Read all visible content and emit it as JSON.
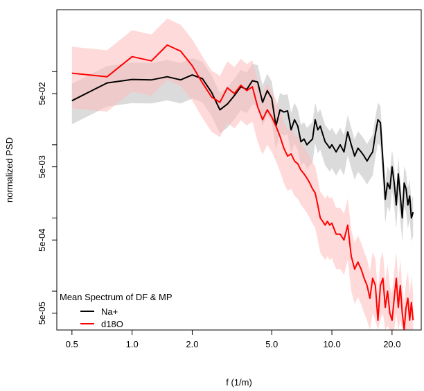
{
  "chart_data": {
    "type": "line",
    "title": "",
    "xlabel": "f (1/m)",
    "ylabel": "normalized PSD",
    "x_scale": "log",
    "y_scale": "log",
    "xlim": [
      0.42,
      28
    ],
    "ylim": [
      2.95e-05,
      0.7
    ],
    "x_ticks": [
      0.5,
      1.0,
      2.0,
      5.0,
      10.0,
      20.0
    ],
    "x_tick_labels": [
      "0.5",
      "1.0",
      "2.0",
      "5.0",
      "10.0",
      "20.0"
    ],
    "y_ticks": [
      5e-05,
      0.0005,
      0.005,
      0.05
    ],
    "y_tick_labels": [
      "5e-05",
      "5e-04",
      "5e-03",
      "5e-02"
    ],
    "grid": false,
    "legend": {
      "title": "Mean Spectrum of DF & MP",
      "position": "bottom-left",
      "entries": [
        {
          "label": "Na+",
          "color": "#000000"
        },
        {
          "label": "d18O",
          "color": "#ff0000"
        }
      ]
    },
    "series": [
      {
        "name": "Na+",
        "color": "#000000",
        "band_color": "#bebebe",
        "x": [
          0.5,
          0.75,
          1.0,
          1.25,
          1.5,
          1.75,
          2.0,
          2.25,
          2.5,
          2.75,
          3.0,
          3.25,
          3.5,
          3.75,
          4.0,
          4.25,
          4.5,
          4.75,
          5.0,
          5.25,
          5.5,
          5.75,
          6.0,
          6.25,
          6.5,
          6.75,
          7.0,
          7.25,
          7.5,
          7.75,
          8.0,
          8.25,
          8.5,
          8.75,
          9.0,
          9.25,
          9.5,
          9.75,
          10.0,
          10.5,
          11.0,
          11.5,
          12.0,
          12.5,
          13.0,
          13.5,
          14.0,
          14.5,
          15.0,
          15.5,
          16.0,
          16.5,
          17.0,
          17.5,
          18.0,
          18.5,
          19.0,
          19.5,
          20.0,
          20.5,
          21.0,
          21.5,
          22.0,
          22.5,
          23.0,
          23.5,
          24.0,
          24.5,
          25.0,
          25.5
        ],
        "values": [
          0.04,
          0.07,
          0.078,
          0.077,
          0.085,
          0.077,
          0.09,
          0.08,
          0.052,
          0.03,
          0.036,
          0.047,
          0.062,
          0.057,
          0.075,
          0.072,
          0.038,
          0.055,
          0.043,
          0.018,
          0.03,
          0.028,
          0.029,
          0.016,
          0.022,
          0.018,
          0.011,
          0.012,
          0.01,
          0.011,
          0.012,
          0.022,
          0.016,
          0.018,
          0.014,
          0.011,
          0.01,
          0.009,
          0.01,
          0.008,
          0.01,
          0.008,
          0.015,
          0.01,
          0.007,
          0.009,
          0.008,
          0.007,
          0.006,
          0.007,
          0.008,
          0.014,
          0.022,
          0.02,
          0.006,
          0.0018,
          0.003,
          0.0025,
          0.005,
          0.003,
          0.0015,
          0.004,
          0.002,
          0.001,
          0.003,
          0.0025,
          0.0015,
          0.002,
          0.001,
          0.0012
        ]
      },
      {
        "name": "d18O",
        "color": "#ff0000",
        "band_color": "#ffbcbc",
        "x": [
          0.5,
          0.75,
          1.0,
          1.25,
          1.5,
          1.75,
          2.0,
          2.25,
          2.5,
          2.75,
          3.0,
          3.25,
          3.5,
          3.75,
          4.0,
          4.25,
          4.5,
          4.75,
          5.0,
          5.25,
          5.5,
          5.75,
          6.0,
          6.25,
          6.5,
          6.75,
          7.0,
          7.25,
          7.5,
          7.75,
          8.0,
          8.25,
          8.5,
          8.75,
          9.0,
          9.25,
          9.5,
          9.75,
          10.0,
          10.5,
          11.0,
          11.5,
          12.0,
          12.5,
          13.0,
          13.5,
          14.0,
          14.5,
          15.0,
          15.5,
          16.0,
          16.5,
          17.0,
          17.5,
          18.0,
          18.5,
          19.0,
          19.5,
          20.0,
          20.5,
          21.0,
          21.5,
          22.0,
          22.5,
          23.0,
          23.5,
          24.0,
          24.5,
          25.0,
          25.5
        ],
        "values": [
          0.095,
          0.085,
          0.16,
          0.14,
          0.23,
          0.19,
          0.12,
          0.07,
          0.045,
          0.038,
          0.06,
          0.05,
          0.065,
          0.055,
          0.062,
          0.033,
          0.022,
          0.03,
          0.024,
          0.018,
          0.013,
          0.009,
          0.007,
          0.0075,
          0.006,
          0.0055,
          0.0045,
          0.004,
          0.0035,
          0.003,
          0.0025,
          0.0022,
          0.0015,
          0.001,
          0.0009,
          0.0008,
          0.0009,
          0.0008,
          0.00085,
          0.0006,
          0.0006,
          0.0005,
          0.0008,
          0.0003,
          0.0002,
          0.00025,
          0.0002,
          0.00015,
          0.00012,
          8e-05,
          0.00015,
          0.00012,
          4e-05,
          0.00012,
          0.00015,
          6e-05,
          0.0001,
          5e-05,
          4e-05,
          8e-05,
          0.00015,
          6e-05,
          0.00012,
          5e-05,
          3e-05,
          6e-05,
          8e-05,
          4e-05,
          7e-05,
          4e-05
        ]
      }
    ]
  }
}
